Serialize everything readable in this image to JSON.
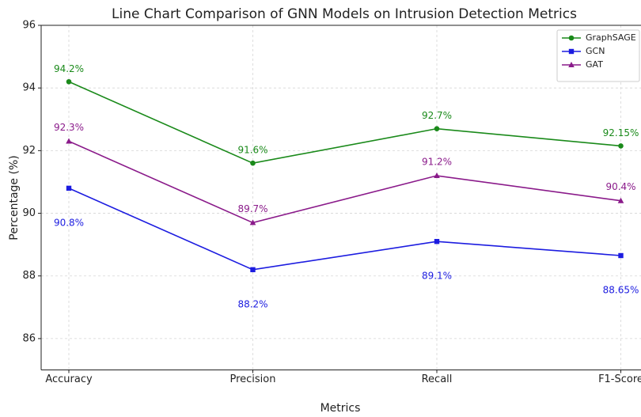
{
  "chart_data": {
    "type": "line",
    "title": "Line Chart Comparison of GNN Models on Intrusion Detection Metrics",
    "x_label": "Metrics",
    "y_label": "Percentage (%)",
    "categories": [
      "Accuracy",
      "Precision",
      "Recall",
      "F1-Score"
    ],
    "series": [
      {
        "name": "GraphSAGE",
        "color": "#1a8a1a",
        "marker": "circle",
        "values": [
          94.2,
          91.6,
          92.7,
          92.15
        ],
        "value_labels": [
          "94.2%",
          "91.6%",
          "92.7%",
          "92.15%"
        ]
      },
      {
        "name": "GCN",
        "color": "#1c1ce0",
        "marker": "square",
        "values": [
          90.8,
          88.2,
          89.1,
          88.65
        ],
        "value_labels": [
          "90.8%",
          "88.2%",
          "89.1%",
          "88.65%"
        ]
      },
      {
        "name": "GAT",
        "color": "#8a1a8a",
        "marker": "triangle",
        "values": [
          92.3,
          89.7,
          91.2,
          90.4
        ],
        "value_labels": [
          "92.3%",
          "89.7%",
          "91.2%",
          "90.4%"
        ]
      }
    ],
    "ylim": [
      85,
      96
    ],
    "yticks": [
      86,
      88,
      90,
      92,
      94,
      96
    ],
    "grid": true,
    "legend": "upper right"
  }
}
